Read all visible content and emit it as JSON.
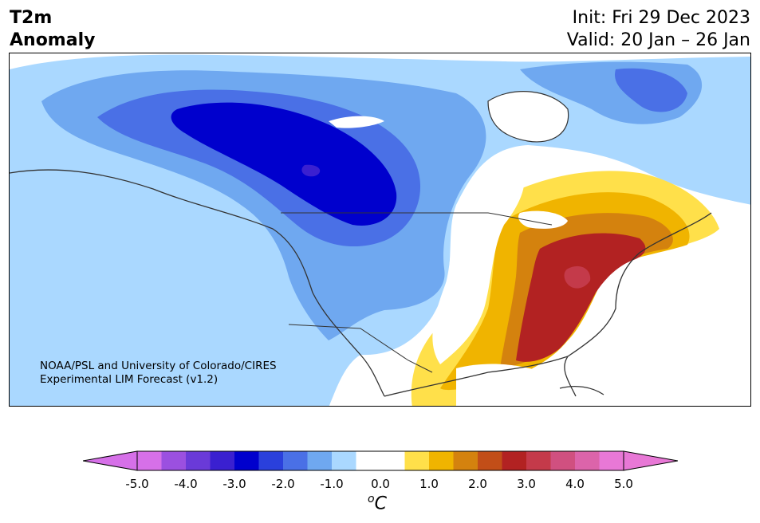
{
  "header": {
    "title_line1": "T2m",
    "title_line2": "Anomaly",
    "init": "Init: Fri 29 Dec 2023",
    "valid": "Valid: 20 Jan – 26 Jan"
  },
  "map": {
    "region": "North America",
    "credit_line1": "NOAA/PSL and University of Colorado/CIRES",
    "credit_line2": "Experimental LIM Forecast (v1.2)",
    "anomaly_zones": [
      {
        "area": "Western/central Canada and northern Rockies",
        "anomaly_c": -3.0,
        "color": "#0000cd"
      },
      {
        "area": "Western US and Canadian prairies",
        "anomaly_c": -1.5,
        "color": "#6fa8f0"
      },
      {
        "area": "Eastern Canada and Labrador",
        "anomaly_c": -1.0,
        "color": "#aad8ff"
      },
      {
        "area": "Mid-Atlantic, Southeast and Ohio Valley US",
        "anomaly_c": 3.0,
        "color": "#b22222"
      },
      {
        "area": "Great Lakes and Northeast",
        "anomaly_c": 2.0,
        "color": "#d4820e"
      },
      {
        "area": "Southern Plains and Gulf coast",
        "anomaly_c": 1.0,
        "color": "#f0b400"
      }
    ]
  },
  "colorbar": {
    "unit_base": "C",
    "unit_sup": "o",
    "tick_labels": [
      "-5.0",
      "-4.0",
      "-3.0",
      "-2.0",
      "-1.0",
      "0.0",
      "1.0",
      "2.0",
      "3.0",
      "4.0",
      "5.0"
    ],
    "colors": [
      "#d670e8",
      "#9b50e0",
      "#6a3ad8",
      "#3a20d0",
      "#0000cd",
      "#2a40dc",
      "#4a70e6",
      "#6fa8f0",
      "#aad8ff",
      "#ffffff",
      "#ffffff",
      "#ffe04a",
      "#f0b400",
      "#d4820e",
      "#c24e18",
      "#b22222",
      "#c43a4a",
      "#d05080",
      "#dc64aa",
      "#e878d6"
    ],
    "min_color": "#d670e8",
    "max_color": "#e878d6"
  }
}
